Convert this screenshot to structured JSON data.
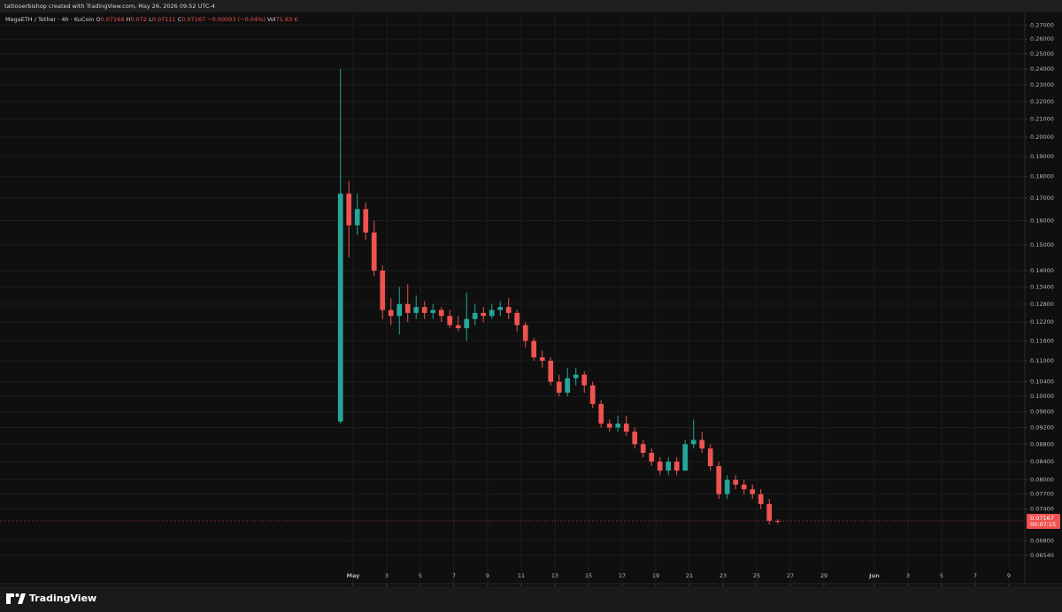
{
  "chart_data": {
    "type": "candlestick",
    "credit": "tattooerbishop created with TradingView.com, May 26, 2026 09:52 UTC-4",
    "title": "MegaETH / Tether · 4h · KuCoin",
    "legend": [
      {
        "label": "O",
        "value": 0.07169
      },
      {
        "label": "H",
        "value": 0.072
      },
      {
        "label": "L",
        "value": 0.07111
      },
      {
        "label": "C",
        "value": 0.07167
      }
    ],
    "change": "−0.00003 (−0.04%)",
    "volume": {
      "label": "Vol",
      "value": "71.63 K"
    },
    "brand": "TradingView",
    "last_price": {
      "value": 0.07167,
      "label": "0.07167",
      "countdown": "00:07:15"
    },
    "log_scale": true,
    "grid": true,
    "up_color": "#26a69a",
    "down_color": "#ef5350",
    "xlim": [
      -20,
      40.95
    ],
    "xticks": [
      {
        "value": 1,
        "label": "May"
      },
      3,
      5,
      7,
      9,
      11,
      13,
      15,
      17,
      19,
      21,
      23,
      25,
      27,
      29,
      {
        "value": 32,
        "label": "Jun"
      },
      {
        "value": 34,
        "label": "3"
      },
      {
        "value": 36,
        "label": "5"
      },
      {
        "value": 38,
        "label": "7"
      },
      {
        "value": 40,
        "label": "9"
      }
    ],
    "ylim": [
      0.0606,
      0.2786
    ],
    "yticks": [
      {
        "value": 0.27,
        "label": "0.27000"
      },
      {
        "value": 0.26,
        "label": "0.26000"
      },
      {
        "value": 0.25,
        "label": "0.25000"
      },
      {
        "value": 0.24,
        "label": "0.24000"
      },
      {
        "value": 0.23,
        "label": "0.23000"
      },
      {
        "value": 0.22,
        "label": "0.22000"
      },
      {
        "value": 0.21,
        "label": "0.21000"
      },
      {
        "value": 0.2,
        "label": "0.20000"
      },
      {
        "value": 0.19,
        "label": "0.19000"
      },
      {
        "value": 0.18,
        "label": "0.18000"
      },
      {
        "value": 0.17,
        "label": "0.17000"
      },
      {
        "value": 0.16,
        "label": "0.16000"
      },
      {
        "value": 0.15,
        "label": "0.15000"
      },
      {
        "value": 0.14,
        "label": "0.14000"
      },
      {
        "value": 0.134,
        "label": "0.13400"
      },
      {
        "value": 0.128,
        "label": "0.12800"
      },
      {
        "value": 0.122,
        "label": "0.12200"
      },
      {
        "value": 0.116,
        "label": "0.11600"
      },
      {
        "value": 0.11,
        "label": "0.11000"
      },
      {
        "value": 0.104,
        "label": "0.10400"
      },
      {
        "value": 0.1,
        "label": "0.10000"
      },
      {
        "value": 0.096,
        "label": "0.09600"
      },
      {
        "value": 0.092,
        "label": "0.09200"
      },
      {
        "value": 0.088,
        "label": "0.08800"
      },
      {
        "value": 0.084,
        "label": "0.08400"
      },
      {
        "value": 0.08,
        "label": "0.08000"
      },
      {
        "value": 0.077,
        "label": "0.07700"
      },
      {
        "value": 0.074,
        "label": "0.07400"
      },
      {
        "value": 0.068,
        "label": "0.06800"
      },
      {
        "value": 0.0654,
        "label": "0.06540"
      }
    ],
    "x": [
      0.25,
      0.75,
      1.25,
      1.75,
      2.25,
      2.75,
      3.25,
      3.75,
      4.25,
      4.75,
      5.25,
      5.75,
      6.25,
      6.75,
      7.25,
      7.75,
      8.25,
      8.75,
      9.25,
      9.75,
      10.25,
      10.75,
      11.25,
      11.75,
      12.25,
      12.75,
      13.25,
      13.75,
      14.25,
      14.75,
      15.25,
      15.75,
      16.25,
      16.75,
      17.25,
      17.75,
      18.25,
      18.75,
      19.25,
      19.75,
      20.25,
      20.75,
      21.25,
      21.75,
      22.25,
      22.75,
      23.25,
      23.75,
      24.25,
      24.75,
      25.25,
      25.75,
      26.25
    ],
    "open": [
      0.0935,
      0.172,
      0.158,
      0.165,
      0.155,
      0.14,
      0.126,
      0.124,
      0.128,
      0.125,
      0.127,
      0.125,
      0.126,
      0.124,
      0.121,
      0.12,
      0.123,
      0.125,
      0.124,
      0.126,
      0.127,
      0.125,
      0.121,
      0.116,
      0.111,
      0.11,
      0.104,
      0.101,
      0.105,
      0.106,
      0.103,
      0.098,
      0.093,
      0.092,
      0.093,
      0.091,
      0.088,
      0.086,
      0.084,
      0.082,
      0.084,
      0.082,
      0.088,
      0.089,
      0.087,
      0.083,
      0.077,
      0.08,
      0.079,
      0.078,
      0.077,
      0.075,
      0.07169
    ],
    "high": [
      0.24,
      0.178,
      0.172,
      0.168,
      0.16,
      0.142,
      0.13,
      0.134,
      0.135,
      0.131,
      0.129,
      0.128,
      0.127,
      0.126,
      0.124,
      0.132,
      0.128,
      0.127,
      0.128,
      0.129,
      0.13,
      0.126,
      0.122,
      0.117,
      0.113,
      0.111,
      0.106,
      0.108,
      0.108,
      0.107,
      0.104,
      0.099,
      0.094,
      0.095,
      0.095,
      0.092,
      0.089,
      0.087,
      0.085,
      0.085,
      0.085,
      0.089,
      0.094,
      0.091,
      0.088,
      0.084,
      0.081,
      0.081,
      0.08,
      0.079,
      0.078,
      0.076,
      0.072
    ],
    "low": [
      0.093,
      0.145,
      0.154,
      0.152,
      0.138,
      0.123,
      0.121,
      0.118,
      0.122,
      0.123,
      0.123,
      0.123,
      0.122,
      0.12,
      0.119,
      0.116,
      0.121,
      0.122,
      0.123,
      0.124,
      0.123,
      0.119,
      0.114,
      0.11,
      0.108,
      0.103,
      0.1,
      0.1,
      0.103,
      0.101,
      0.097,
      0.092,
      0.091,
      0.091,
      0.09,
      0.087,
      0.085,
      0.083,
      0.081,
      0.081,
      0.081,
      0.082,
      0.087,
      0.086,
      0.082,
      0.076,
      0.076,
      0.078,
      0.077,
      0.076,
      0.074,
      0.071,
      0.07111
    ],
    "close": [
      0.172,
      0.158,
      0.165,
      0.155,
      0.14,
      0.126,
      0.124,
      0.128,
      0.125,
      0.127,
      0.125,
      0.126,
      0.124,
      0.121,
      0.12,
      0.123,
      0.125,
      0.124,
      0.126,
      0.127,
      0.125,
      0.121,
      0.116,
      0.111,
      0.11,
      0.104,
      0.101,
      0.105,
      0.106,
      0.103,
      0.098,
      0.093,
      0.092,
      0.093,
      0.091,
      0.088,
      0.086,
      0.084,
      0.082,
      0.084,
      0.082,
      0.088,
      0.089,
      0.087,
      0.083,
      0.077,
      0.08,
      0.079,
      0.078,
      0.077,
      0.075,
      0.0717,
      0.07167
    ]
  }
}
